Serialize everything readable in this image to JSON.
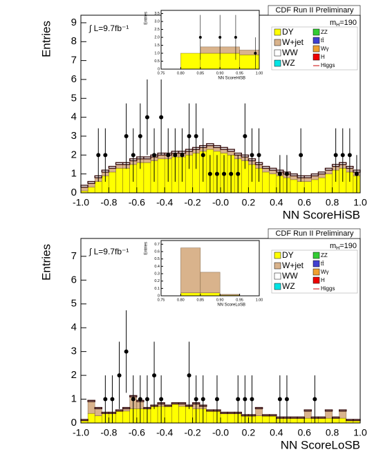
{
  "chart_data": [
    {
      "type": "histogram",
      "title": "CDF Run II Preliminary",
      "luminosity": "∫ L=9.7fb⁻¹",
      "mass_label": {
        "symbol": "m",
        "subscript": "H",
        "text": "=190"
      },
      "xlabel": "NN ScoreHiSB",
      "ylabel": "Entries",
      "xlim": [
        -1,
        1
      ],
      "ylim": [
        0,
        9.4
      ],
      "xticks": [
        {
          "value": -1,
          "label": "-1.0"
        },
        -0.8,
        -0.6,
        -0.4,
        -0.2,
        {
          "value": 0,
          "label": "-0.0"
        },
        0.2,
        0.4,
        0.6,
        0.8,
        {
          "value": 1,
          "label": "1.0"
        }
      ],
      "yticks": [
        0,
        1,
        2,
        3,
        4,
        5,
        6,
        7,
        8,
        9
      ],
      "bins": [
        -1,
        -0.95,
        -0.9,
        -0.85,
        -0.8,
        -0.75,
        -0.7,
        -0.65,
        -0.6,
        -0.55,
        -0.5,
        -0.45,
        -0.4,
        -0.35,
        -0.3,
        -0.25,
        -0.2,
        -0.15,
        -0.1,
        -0.05,
        0,
        0.05,
        0.1,
        0.15,
        0.2,
        0.25,
        0.3,
        0.35,
        0.4,
        0.45,
        0.5,
        0.55,
        0.6,
        0.65,
        0.7,
        0.75,
        0.8,
        0.85,
        0.9,
        0.95,
        1
      ],
      "series": [
        {
          "name": "DY",
          "color": "#ffff00",
          "values": [
            0.1,
            0.3,
            0.6,
            0.9,
            1.1,
            1.3,
            1.3,
            1.5,
            1.6,
            1.6,
            1.7,
            1.8,
            1.8,
            1.9,
            1.9,
            2.0,
            2.1,
            2.2,
            2.3,
            2.2,
            2.1,
            2.0,
            1.8,
            1.7,
            1.5,
            1.3,
            1.1,
            1.0,
            0.9,
            0.8,
            0.7,
            0.6,
            0.6,
            0.7,
            0.8,
            1.0,
            1.2,
            1.3,
            1.1,
            0.9
          ]
        },
        {
          "name": "W+jet",
          "color": "#d9b38c",
          "values": [
            0.2,
            0.2,
            0.2,
            0.2,
            0.2,
            0.2,
            0.2,
            0.2,
            0.2,
            0.2,
            0.2,
            0.2,
            0.2,
            0.2,
            0.2,
            0.2,
            0.2,
            0.2,
            0.2,
            0.2,
            0.2,
            0.2,
            0.2,
            0.2,
            0.2,
            0.2,
            0.2,
            0.2,
            0.2,
            0.2,
            0.2,
            0.2,
            0.2,
            0.2,
            0.2,
            0.2,
            0.2,
            0.2,
            0.2,
            0.2
          ]
        },
        {
          "name": "WW",
          "color": "#ffffff",
          "values": [
            0.1,
            0.1,
            0.1,
            0.1,
            0.1,
            0.1,
            0.1,
            0.1,
            0.1,
            0.1,
            0.1,
            0.1,
            0.1,
            0.1,
            0.1,
            0.1,
            0.1,
            0.1,
            0.1,
            0.1,
            0.1,
            0.1,
            0.1,
            0.1,
            0.1,
            0.1,
            0.1,
            0.1,
            0.1,
            0.1,
            0.1,
            0.1,
            0.1,
            0.1,
            0.1,
            0.1,
            0.1,
            0.1,
            0.1,
            0.1
          ]
        }
      ],
      "legend_extra": [
        {
          "name": "WZ",
          "color": "#00e5e5"
        },
        {
          "name": "ZZ",
          "color": "#33cc33"
        },
        {
          "name": "tt̄",
          "color": "#4040d0"
        },
        {
          "name": "Wγ",
          "color": "#f0a030"
        },
        {
          "name": "H",
          "color": "#ee0000"
        },
        {
          "name": "Higgs",
          "color": "#cc0000",
          "marker": "line"
        }
      ],
      "data": {
        "name": "Data",
        "x": [
          -0.875,
          -0.825,
          -0.675,
          -0.625,
          -0.575,
          -0.525,
          -0.475,
          -0.425,
          -0.375,
          -0.325,
          -0.275,
          -0.225,
          -0.175,
          -0.125,
          -0.075,
          -0.025,
          0.025,
          0.075,
          0.125,
          0.175,
          0.225,
          0.275,
          0.425,
          0.475,
          0.575,
          0.825,
          0.875,
          0.925,
          0.975
        ],
        "values": [
          2,
          2,
          3,
          2,
          3,
          4,
          2,
          4,
          2,
          2,
          2,
          3,
          3,
          2,
          1,
          1,
          1,
          1,
          1,
          3,
          2,
          2,
          1,
          1,
          2,
          2,
          2,
          2,
          1
        ]
      }
    },
    {
      "type": "histogram",
      "xlabel": "NN ScoreHiSB",
      "ylabel": "Entries",
      "xlim": [
        0.75,
        1
      ],
      "ylim": [
        0,
        3.7
      ],
      "xticks": [
        0.75,
        {
          "value": 0.8,
          "label": "0.80"
        },
        0.85,
        {
          "value": 0.9,
          "label": "0.90"
        },
        0.95,
        {
          "value": 1,
          "label": "1.00"
        }
      ],
      "yticks": [
        0,
        0.5,
        {
          "value": 1,
          "label": "1.0"
        },
        1.5,
        {
          "value": 2,
          "label": "2.0"
        },
        2.5,
        {
          "value": 3,
          "label": "3.0"
        },
        3.5
      ],
      "bins": [
        0.8,
        0.85,
        0.9,
        0.95,
        1
      ],
      "series": [
        {
          "name": "DY",
          "color": "#ffff00",
          "values": [
            1.0,
            1.0,
            1.0,
            0.9
          ]
        },
        {
          "name": "W+jet",
          "color": "#d9b38c",
          "values": [
            0,
            0.4,
            0.4,
            0.3
          ]
        }
      ],
      "data": {
        "name": "Data",
        "x": [
          0.85,
          0.9,
          0.94,
          0.99
        ],
        "values": [
          2,
          2,
          2,
          1
        ]
      }
    },
    {
      "type": "histogram",
      "title": "CDF Run II Preliminary",
      "luminosity": "∫ L=9.7fb⁻¹",
      "mass_label": {
        "symbol": "m",
        "subscript": "H",
        "text": "=190"
      },
      "xlabel": "NN ScoreLoSB",
      "ylabel": "Entries",
      "xlim": [
        -1,
        1
      ],
      "ylim": [
        0,
        7.75
      ],
      "xticks": [
        {
          "value": -1,
          "label": "-1.0"
        },
        -0.8,
        -0.6,
        -0.4,
        -0.2,
        {
          "value": 0,
          "label": "-0.0"
        },
        0.2,
        0.4,
        0.6,
        0.8,
        {
          "value": 1,
          "label": "1.0"
        }
      ],
      "yticks": [
        0,
        1,
        2,
        3,
        4,
        5,
        6,
        7
      ],
      "bins": [
        -1,
        -0.95,
        -0.9,
        -0.85,
        -0.8,
        -0.75,
        -0.7,
        -0.65,
        -0.6,
        -0.55,
        -0.5,
        -0.45,
        -0.4,
        -0.35,
        -0.3,
        -0.25,
        -0.2,
        -0.15,
        -0.1,
        -0.05,
        0,
        0.05,
        0.1,
        0.15,
        0.2,
        0.25,
        0.3,
        0.35,
        0.4,
        0.45,
        0.5,
        0.55,
        0.6,
        0.65,
        0.7,
        0.75,
        0.8,
        0.85,
        0.9,
        0.95,
        1
      ],
      "series": [
        {
          "name": "DY",
          "color": "#ffff00",
          "values": [
            0.1,
            0.4,
            0.3,
            0.4,
            0.4,
            0.5,
            0.5,
            0.6,
            0.6,
            0.6,
            0.7,
            0.7,
            0.7,
            0.8,
            0.7,
            0.7,
            0.6,
            0.6,
            0.5,
            0.5,
            0.4,
            0.4,
            0.4,
            0.3,
            0.3,
            0.3,
            0.3,
            0.3,
            0.2,
            0.2,
            0.2,
            0.2,
            0.2,
            0.2,
            0.2,
            0.2,
            0.2,
            0.2,
            0.1,
            0.1
          ]
        },
        {
          "name": "W+jet",
          "color": "#d9b38c",
          "values": [
            0,
            0.5,
            0.3,
            0,
            0,
            0,
            0.1,
            0.5,
            0.3,
            0,
            0,
            0.1,
            0,
            0,
            0.1,
            0,
            0.2,
            0.1,
            0,
            0,
            0,
            0,
            0,
            0,
            0,
            0.3,
            0,
            0,
            0,
            0,
            0,
            0,
            0.3,
            0,
            0,
            0.3,
            0,
            0.3,
            0,
            0
          ]
        },
        {
          "name": "WW",
          "color": "#ffffff",
          "values": [
            0.05,
            0.05,
            0.05,
            0.05,
            0.05,
            0.05,
            0.05,
            0.05,
            0.05,
            0.05,
            0.05,
            0.05,
            0.05,
            0.05,
            0.05,
            0.05,
            0.05,
            0.05,
            0.05,
            0.05,
            0.05,
            0.05,
            0.05,
            0.05,
            0.05,
            0.05,
            0.05,
            0.05,
            0.05,
            0.05,
            0.05,
            0.05,
            0.05,
            0.05,
            0.05,
            0.05,
            0.05,
            0.05,
            0.05,
            0.05
          ]
        }
      ],
      "legend_extra": [
        {
          "name": "WZ",
          "color": "#00e5e5"
        },
        {
          "name": "ZZ",
          "color": "#33cc33"
        },
        {
          "name": "tt̄",
          "color": "#4040d0"
        },
        {
          "name": "Wγ",
          "color": "#f0a030"
        },
        {
          "name": "H",
          "color": "#ee0000"
        },
        {
          "name": "Higgs",
          "color": "#cc0000",
          "marker": "line"
        }
      ],
      "data": {
        "name": "Data",
        "x": [
          -0.825,
          -0.775,
          -0.725,
          -0.675,
          -0.625,
          -0.575,
          -0.525,
          -0.475,
          -0.425,
          -0.225,
          -0.175,
          -0.125,
          -0.025,
          0.125,
          0.175,
          0.225,
          0.425,
          0.475,
          0.675
        ],
        "values": [
          1,
          1,
          2,
          3,
          1,
          1,
          1,
          2,
          1,
          2,
          1,
          1,
          1,
          1,
          1,
          1,
          1,
          1,
          1
        ]
      }
    },
    {
      "type": "histogram",
      "xlabel": "NN ScoreLoSB",
      "ylabel": "Entries",
      "xlim": [
        0.75,
        1
      ],
      "ylim": [
        0,
        0.75
      ],
      "xticks": [
        0.75,
        {
          "value": 0.8,
          "label": "0.80"
        },
        0.85,
        {
          "value": 0.9,
          "label": "0.90"
        },
        0.95,
        {
          "value": 1,
          "label": "1.00"
        }
      ],
      "yticks": [
        0,
        0.1,
        0.2,
        0.3,
        0.4,
        0.5,
        0.6,
        0.7
      ],
      "bins": [
        0.8,
        0.85,
        0.9,
        0.95
      ],
      "series": [
        {
          "name": "DY",
          "color": "#ffff00",
          "values": [
            0.04,
            0.04,
            0.01
          ]
        },
        {
          "name": "W+jet",
          "color": "#d9b38c",
          "values": [
            0.61,
            0.28,
            0.01
          ]
        }
      ]
    }
  ]
}
